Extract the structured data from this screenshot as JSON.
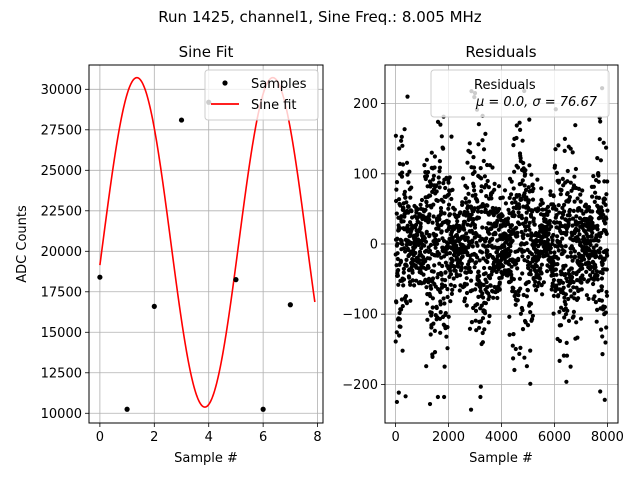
{
  "suptitle": "Run 1425, channel1, Sine Freq.: 8.005 MHz",
  "chart_data": [
    {
      "type": "line",
      "title": "Sine Fit",
      "xlabel": "Sample #",
      "ylabel": "ADC Counts",
      "xlim": [
        -0.4,
        8.2
      ],
      "ylim": [
        9400,
        31500
      ],
      "grid": true,
      "xticks": [
        0,
        2,
        4,
        6,
        8
      ],
      "xtick_labels": [
        "0",
        "2",
        "4",
        "6",
        "8"
      ],
      "yticks": [
        10000,
        12500,
        15000,
        17500,
        20000,
        22500,
        25000,
        27500,
        30000
      ],
      "ytick_labels": [
        "10000",
        "12500",
        "15000",
        "17500",
        "20000",
        "22500",
        "25000",
        "27500",
        "30000"
      ],
      "legend": {
        "placement": "top-right",
        "entries": [
          "Samples",
          "Sine fit"
        ]
      },
      "series": [
        {
          "name": "Samples",
          "kind": "scatter",
          "color": "#000000",
          "x": [
            0,
            1,
            2,
            3,
            4,
            5,
            6,
            7
          ],
          "y": [
            18400,
            10250,
            16600,
            28100,
            29200,
            18250,
            10250,
            16700
          ]
        },
        {
          "name": "Sine fit",
          "kind": "line",
          "color": "#ff0000",
          "fit": {
            "offset": 20550,
            "amplitude": 10170,
            "period_samples": 4.9969,
            "phase_rad": -0.1385
          },
          "x_range": [
            0,
            7.9
          ]
        }
      ]
    },
    {
      "type": "scatter",
      "title": "Residuals",
      "xlabel": "Sample #",
      "ylabel": "",
      "xlim": [
        -400,
        8400
      ],
      "ylim": [
        -255,
        255
      ],
      "grid": true,
      "xticks": [
        0,
        2000,
        4000,
        6000,
        8000
      ],
      "xtick_labels": [
        "0",
        "2000",
        "4000",
        "6000",
        "8000"
      ],
      "yticks": [
        -200,
        -100,
        0,
        100,
        200
      ],
      "ytick_labels": [
        "−200",
        "−100",
        "0",
        "100",
        "200"
      ],
      "legend": {
        "placement": "top-right",
        "entries": [
          "Residuals",
          "μ = 0.0, σ = 76.67"
        ]
      },
      "series": [
        {
          "name": "Residuals",
          "color": "#000000",
          "mean": 0.0,
          "sigma": 76.67,
          "n_points": 8000,
          "envelope_period_samples": 1600,
          "outlier_examples": [
            [
              50,
              -225
            ],
            [
              1300,
              -228
            ],
            [
              2850,
              -236
            ],
            [
              450,
              210
            ],
            [
              3000,
              215
            ],
            [
              7800,
              222
            ],
            [
              7900,
              -222
            ],
            [
              6050,
              192
            ]
          ]
        }
      ]
    }
  ]
}
